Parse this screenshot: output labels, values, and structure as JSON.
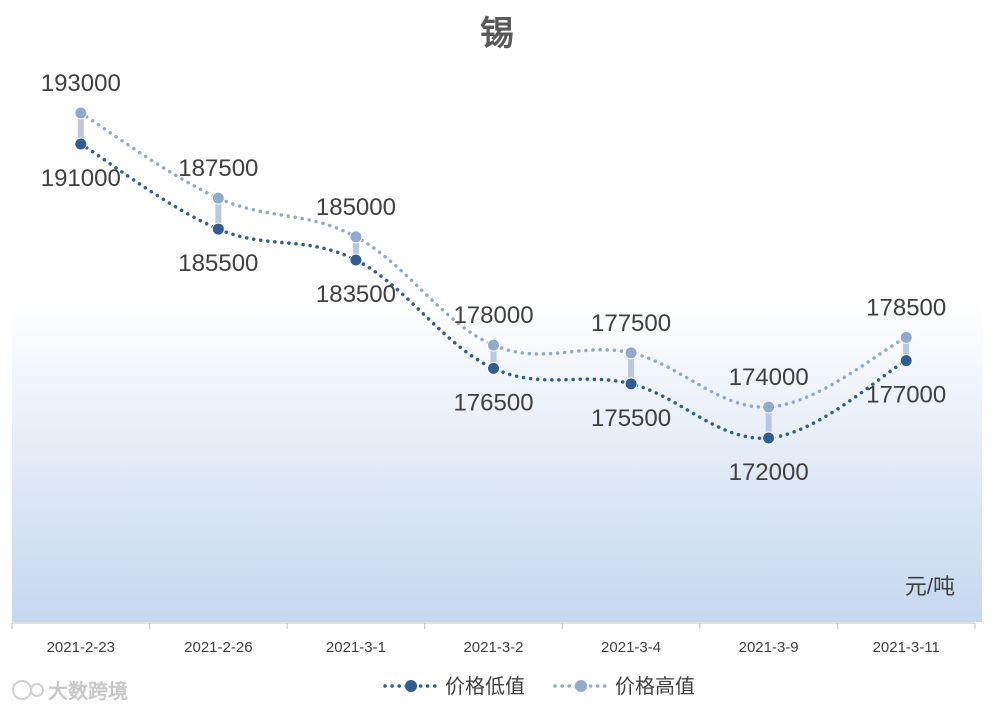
{
  "chart_data": {
    "type": "line",
    "title": "锡",
    "unit_label": "元/吨",
    "categories": [
      "2021-2-23",
      "2021-2-26",
      "2021-3-1",
      "2021-3-2",
      "2021-3-4",
      "2021-3-9",
      "2021-3-11"
    ],
    "series": [
      {
        "name": "价格低值",
        "values": [
          191000,
          185500,
          183500,
          176500,
          175500,
          172000,
          177000
        ],
        "color": "#2f5d95"
      },
      {
        "name": "价格高值",
        "values": [
          193000,
          187500,
          185000,
          178000,
          177500,
          174000,
          178500
        ],
        "color": "#8fa9cf"
      }
    ],
    "hi_lo_lines": true,
    "legend_position": "bottom",
    "grid": false,
    "ylim": [
      165000,
      194000
    ]
  },
  "watermark": "大数跨境"
}
